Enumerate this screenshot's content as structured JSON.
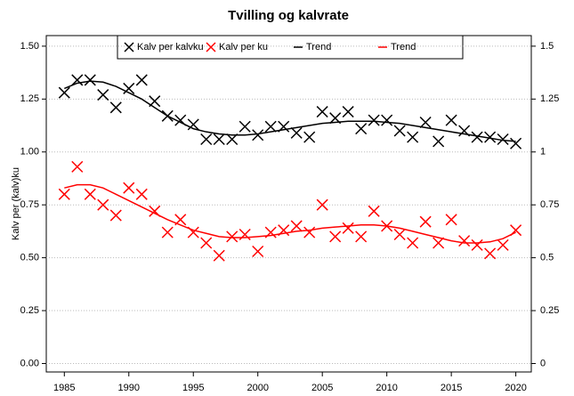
{
  "chart_data": {
    "type": "scatter",
    "title": "Tvilling og kalvrate",
    "y_label": "Kalv per (kalv)ku",
    "x": [
      1985,
      1986,
      1987,
      1988,
      1989,
      1990,
      1991,
      1992,
      1993,
      1994,
      1995,
      1996,
      1997,
      1998,
      1999,
      2000,
      2001,
      2002,
      2003,
      2004,
      2005,
      2006,
      2007,
      2008,
      2009,
      2010,
      2011,
      2012,
      2013,
      2014,
      2015,
      2016,
      2017,
      2018,
      2019,
      2020
    ],
    "xlim": [
      1983.6,
      2021.2
    ],
    "xticks": [
      1985,
      1990,
      1995,
      2000,
      2005,
      2010,
      2015,
      2020
    ],
    "ylim": [
      -0.04,
      1.55
    ],
    "yticks": [
      {
        "value": 0,
        "label": "0.00"
      },
      0.25,
      {
        "value": 0.5,
        "label": "0.50"
      },
      0.75,
      {
        "value": 1,
        "label": "1.00"
      },
      1.25,
      {
        "value": 1.5,
        "label": "1.50"
      }
    ],
    "y2lim": [
      -0.04,
      1.55
    ],
    "y2ticks": [
      0,
      0.25,
      0.5,
      0.75,
      1,
      1.25,
      1.5
    ],
    "grid": true,
    "legend": "top",
    "series": [
      {
        "name": "Kalv per kalvku",
        "color": "#000000",
        "style": "marker",
        "values": [
          1.28,
          1.34,
          1.34,
          1.27,
          1.21,
          1.3,
          1.34,
          1.24,
          1.17,
          1.15,
          1.13,
          1.06,
          1.06,
          1.06,
          1.12,
          1.08,
          1.12,
          1.12,
          1.09,
          1.07,
          1.19,
          1.16,
          1.19,
          1.11,
          1.15,
          1.15,
          1.1,
          1.07,
          1.14,
          1.05,
          1.15,
          1.1,
          1.07,
          1.07,
          1.06,
          1.04
        ]
      },
      {
        "name": "Kalv per ku",
        "color": "#ff0000",
        "style": "marker",
        "values": [
          0.8,
          0.93,
          0.8,
          0.75,
          0.7,
          0.83,
          0.8,
          0.72,
          0.62,
          0.68,
          0.62,
          0.57,
          0.51,
          0.6,
          0.61,
          0.53,
          0.62,
          0.63,
          0.65,
          0.62,
          0.75,
          0.6,
          0.64,
          0.6,
          0.72,
          0.65,
          0.61,
          0.57,
          0.67,
          0.57,
          0.68,
          0.58,
          0.56,
          0.52,
          0.56,
          0.63
        ]
      },
      {
        "name": "Trend",
        "color": "#000000",
        "style": "line",
        "values": [
          1.3,
          1.325,
          1.335,
          1.33,
          1.31,
          1.28,
          1.25,
          1.21,
          1.17,
          1.14,
          1.11,
          1.095,
          1.085,
          1.08,
          1.08,
          1.085,
          1.095,
          1.105,
          1.115,
          1.125,
          1.135,
          1.14,
          1.145,
          1.145,
          1.145,
          1.14,
          1.135,
          1.125,
          1.115,
          1.105,
          1.095,
          1.085,
          1.075,
          1.065,
          1.055,
          1.05
        ]
      },
      {
        "name": "Trend",
        "color": "#ff0000",
        "style": "line",
        "values": [
          0.83,
          0.845,
          0.845,
          0.83,
          0.8,
          0.77,
          0.74,
          0.71,
          0.68,
          0.655,
          0.63,
          0.615,
          0.6,
          0.595,
          0.595,
          0.6,
          0.605,
          0.615,
          0.625,
          0.63,
          0.64,
          0.645,
          0.65,
          0.655,
          0.655,
          0.65,
          0.64,
          0.625,
          0.61,
          0.595,
          0.58,
          0.57,
          0.57,
          0.575,
          0.59,
          0.62
        ]
      }
    ]
  }
}
